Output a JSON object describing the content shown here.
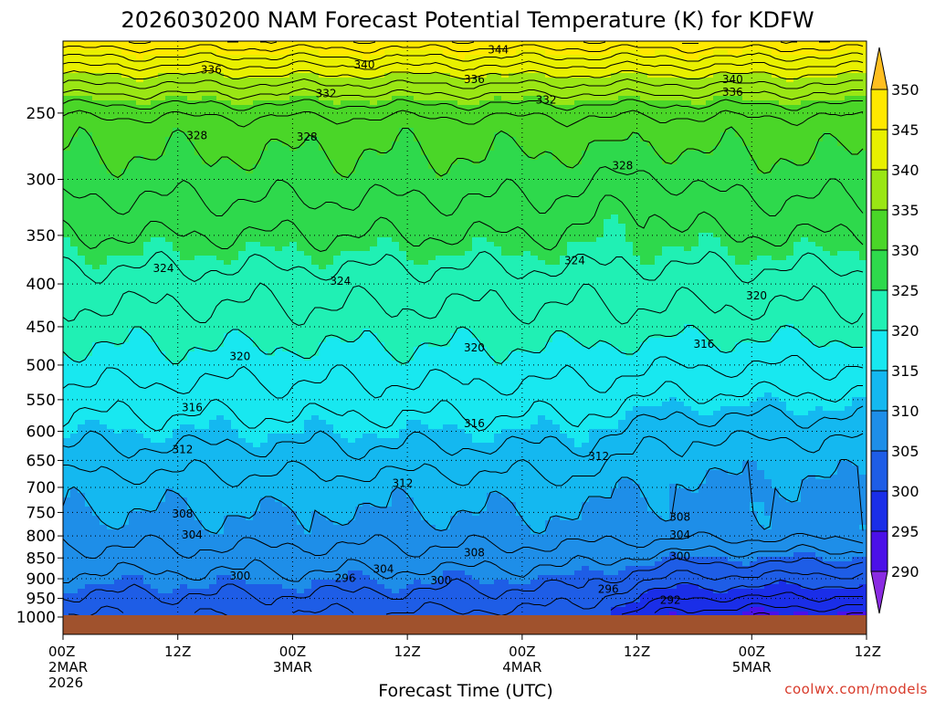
{
  "chart_data": {
    "type": "heatmap",
    "subtype": "filled-contour time-height cross section",
    "title": "2026030200 NAM Forecast Potential Temperature (K) for KDFW",
    "xlabel": "Forecast Time (UTC)",
    "ylabel": "",
    "variable": "Potential Temperature",
    "units": "K",
    "x_range_hours": [
      0,
      84
    ],
    "y_range_hpa": [
      1000,
      200
    ],
    "y_scale": "log",
    "x_ticks": [
      {
        "hour": 0,
        "label": "00Z",
        "sub1": "2MAR",
        "sub2": "2026"
      },
      {
        "hour": 12,
        "label": "12Z",
        "sub1": "",
        "sub2": ""
      },
      {
        "hour": 24,
        "label": "00Z",
        "sub1": "3MAR",
        "sub2": ""
      },
      {
        "hour": 36,
        "label": "12Z",
        "sub1": "",
        "sub2": ""
      },
      {
        "hour": 48,
        "label": "00Z",
        "sub1": "4MAR",
        "sub2": ""
      },
      {
        "hour": 60,
        "label": "12Z",
        "sub1": "",
        "sub2": ""
      },
      {
        "hour": 72,
        "label": "00Z",
        "sub1": "5MAR",
        "sub2": ""
      },
      {
        "hour": 84,
        "label": "12Z",
        "sub1": "",
        "sub2": ""
      }
    ],
    "y_ticks": [
      250,
      300,
      350,
      400,
      450,
      500,
      550,
      600,
      650,
      700,
      750,
      800,
      850,
      900,
      950,
      1000
    ],
    "colorbar": {
      "levels": [
        290,
        295,
        300,
        305,
        310,
        315,
        320,
        325,
        330,
        335,
        340,
        345,
        350
      ],
      "labels": [
        "290",
        "295",
        "300",
        "305",
        "310",
        "315",
        "320",
        "325",
        "330",
        "335",
        "340",
        "345",
        "350"
      ],
      "colors": [
        "#8a2be2",
        "#4b10e8",
        "#1a2ee8",
        "#1e5de6",
        "#1e8ee8",
        "#14b8f0",
        "#18e8f0",
        "#20f0b4",
        "#2ed94c",
        "#4ad628",
        "#9ae614",
        "#e8f000",
        "#ffe800",
        "#ffbf20"
      ]
    },
    "contour_interval_K": 2,
    "series": [
      {
        "name": "theta_850_hPa",
        "hours": [
          0,
          12,
          24,
          36,
          48,
          60,
          72,
          84
        ],
        "values": [
          303,
          303,
          302,
          302,
          301,
          300,
          299,
          299
        ]
      },
      {
        "name": "theta_700_hPa",
        "hours": [
          0,
          12,
          24,
          36,
          48,
          60,
          72,
          84
        ],
        "values": [
          311,
          311,
          311,
          311,
          311,
          309,
          306,
          306
        ]
      },
      {
        "name": "theta_500_hPa",
        "hours": [
          0,
          12,
          24,
          36,
          48,
          60,
          72,
          84
        ],
        "values": [
          319,
          319,
          319,
          318,
          319,
          315,
          315,
          315
        ]
      },
      {
        "name": "theta_300_hPa",
        "hours": [
          0,
          12,
          24,
          36,
          48,
          60,
          72,
          84
        ],
        "values": [
          330,
          329,
          329,
          328,
          328,
          328,
          326,
          326
        ]
      }
    ],
    "contour_labels": [
      {
        "text": "344",
        "hour": 45.5,
        "p": 210
      },
      {
        "text": "340",
        "hour": 31.5,
        "p": 219
      },
      {
        "text": "336",
        "hour": 15.5,
        "p": 222
      },
      {
        "text": "336",
        "hour": 43.0,
        "p": 228
      },
      {
        "text": "340",
        "hour": 70.0,
        "p": 228
      },
      {
        "text": "336",
        "hour": 70.0,
        "p": 236
      },
      {
        "text": "332",
        "hour": 27.5,
        "p": 237
      },
      {
        "text": "332",
        "hour": 50.5,
        "p": 241
      },
      {
        "text": "328",
        "hour": 14.0,
        "p": 266
      },
      {
        "text": "328",
        "hour": 25.5,
        "p": 267
      },
      {
        "text": "328",
        "hour": 58.5,
        "p": 289
      },
      {
        "text": "324",
        "hour": 10.5,
        "p": 383
      },
      {
        "text": "324",
        "hour": 29.0,
        "p": 397
      },
      {
        "text": "324",
        "hour": 53.5,
        "p": 375
      },
      {
        "text": "320",
        "hour": 72.5,
        "p": 413
      },
      {
        "text": "320",
        "hour": 18.5,
        "p": 488
      },
      {
        "text": "320",
        "hour": 43.0,
        "p": 477
      },
      {
        "text": "316",
        "hour": 67.0,
        "p": 472
      },
      {
        "text": "316",
        "hour": 13.5,
        "p": 562
      },
      {
        "text": "316",
        "hour": 43.0,
        "p": 587
      },
      {
        "text": "312",
        "hour": 12.5,
        "p": 631
      },
      {
        "text": "312",
        "hour": 35.5,
        "p": 692
      },
      {
        "text": "312",
        "hour": 56.0,
        "p": 643
      },
      {
        "text": "308",
        "hour": 12.5,
        "p": 753
      },
      {
        "text": "308",
        "hour": 43.0,
        "p": 838
      },
      {
        "text": "308",
        "hour": 64.5,
        "p": 760
      },
      {
        "text": "304",
        "hour": 13.5,
        "p": 798
      },
      {
        "text": "304",
        "hour": 33.5,
        "p": 877
      },
      {
        "text": "304",
        "hour": 64.5,
        "p": 798
      },
      {
        "text": "300",
        "hour": 18.5,
        "p": 893
      },
      {
        "text": "300",
        "hour": 39.5,
        "p": 904
      },
      {
        "text": "300",
        "hour": 64.5,
        "p": 846
      },
      {
        "text": "296",
        "hour": 29.5,
        "p": 899
      },
      {
        "text": "296",
        "hour": 57.0,
        "p": 926
      },
      {
        "text": "292",
        "hour": 63.5,
        "p": 955
      }
    ],
    "ground_color": "#a0522d",
    "watermark": "coolwx.com/models"
  }
}
